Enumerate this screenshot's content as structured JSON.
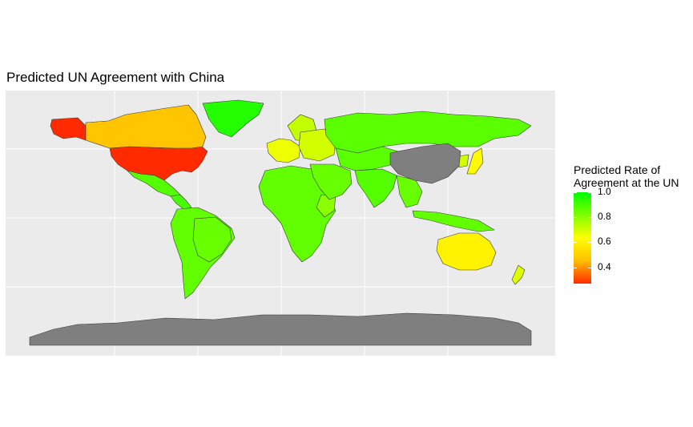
{
  "title": "Predicted UN Agreement with China",
  "legend": {
    "title_line1": "Predicted Rate of",
    "title_line2": "Agreement at the UN",
    "ticks": [
      "1.0",
      "0.8",
      "0.6",
      "0.4"
    ],
    "tick_values": [
      1.0,
      0.8,
      0.6,
      0.4
    ],
    "range": [
      0.27,
      1.0
    ],
    "gradient": [
      "#ff2a00",
      "#ffbf00",
      "#ffff00",
      "#7fff00",
      "#00ff00"
    ]
  },
  "colors": {
    "panel_bg": "#ebebeb",
    "grid": "#ffffff",
    "no_data": "#7f7f7f",
    "border": "#3a3a3a"
  },
  "map_data": {
    "focal_country": "China",
    "regions": [
      {
        "name": "United States",
        "value": 0.27
      },
      {
        "name": "Alaska",
        "value": 0.27
      },
      {
        "name": "Canada",
        "value": 0.47
      },
      {
        "name": "Greenland",
        "value": 0.95
      },
      {
        "name": "Mexico",
        "value": 0.88
      },
      {
        "name": "Central America",
        "value": 0.9
      },
      {
        "name": "South America",
        "value": 0.86
      },
      {
        "name": "Brazil",
        "value": 0.85
      },
      {
        "name": "Western Europe",
        "value": 0.66
      },
      {
        "name": "Scandinavia",
        "value": 0.72
      },
      {
        "name": "Eastern Europe",
        "value": 0.7
      },
      {
        "name": "Russia",
        "value": 0.87
      },
      {
        "name": "Africa",
        "value": 0.86
      },
      {
        "name": "East Africa",
        "value": 0.8
      },
      {
        "name": "Middle East",
        "value": 0.85
      },
      {
        "name": "Central Asia",
        "value": 0.87
      },
      {
        "name": "South Asia",
        "value": 0.88
      },
      {
        "name": "Southeast Asia",
        "value": 0.85
      },
      {
        "name": "Japan",
        "value": 0.62
      },
      {
        "name": "Korea",
        "value": 0.7
      },
      {
        "name": "Australia",
        "value": 0.6
      },
      {
        "name": "New Zealand",
        "value": 0.68
      },
      {
        "name": "Indonesia",
        "value": 0.86
      },
      {
        "name": "China",
        "value": null
      },
      {
        "name": "Antarctica",
        "value": null
      }
    ]
  }
}
